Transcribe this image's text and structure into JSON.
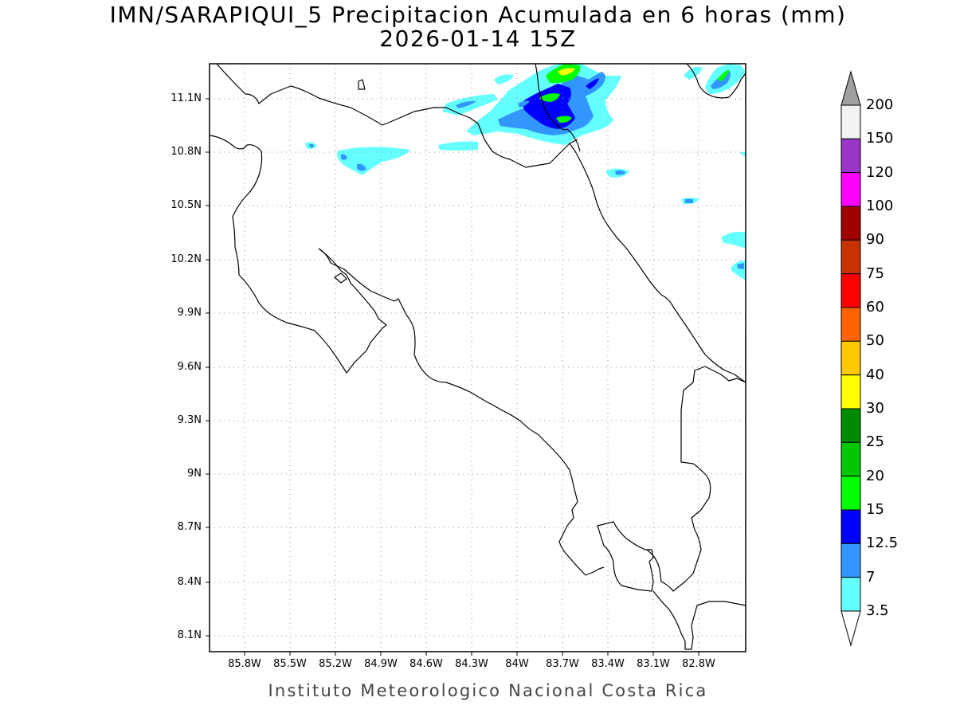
{
  "title": {
    "line1": "IMN/SARAPIQUI_5 Precipitacion Acumulada en 6 horas (mm)",
    "line2": "2026-01-14 15Z"
  },
  "credit": "Instituto Meteorologico Nacional Costa Rica",
  "axes": {
    "y_ticks": [
      "11.1N",
      "10.8N",
      "10.5N",
      "10.2N",
      "9.9N",
      "9.6N",
      "9.3N",
      "9N",
      "8.7N",
      "8.4N",
      "8.1N"
    ],
    "x_ticks": [
      "85.8W",
      "85.5W",
      "85.2W",
      "84.9W",
      "84.6W",
      "84.3W",
      "84W",
      "83.7W",
      "83.4W",
      "83.1W",
      "82.8W"
    ]
  },
  "legend": {
    "labels": [
      "200",
      "150",
      "120",
      "100",
      "90",
      "75",
      "60",
      "50",
      "40",
      "30",
      "25",
      "20",
      "15",
      "12.5",
      "7",
      "3.5"
    ],
    "colors": [
      "#f2f2f2",
      "#9a35c8",
      "#ff00ff",
      "#a00000",
      "#c83200",
      "#ff0000",
      "#ff6400",
      "#ffc800",
      "#ffff00",
      "#008c00",
      "#00c800",
      "#00ff00",
      "#0000ff",
      "#3296ff",
      "#64ffff"
    ],
    "top_arrow_color": "#a0a0a0",
    "bottom_arrow_color": "#ffffff"
  },
  "colors": {
    "light_cyan": "#64ffff",
    "light_blue": "#3296ff",
    "blue": "#0000ff",
    "green": "#00ff00",
    "yellow": "#ffff00"
  }
}
